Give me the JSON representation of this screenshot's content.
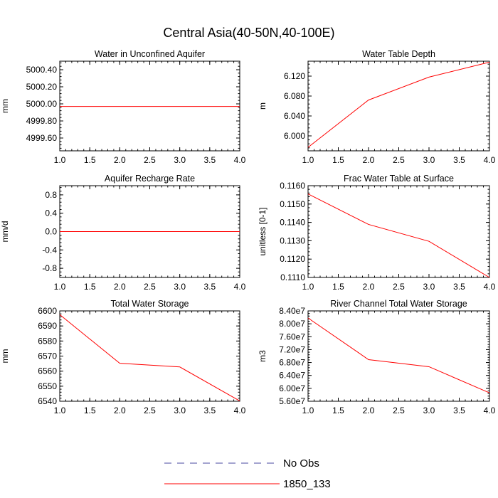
{
  "figure": {
    "title": "Central Asia(40-50N,40-100E)"
  },
  "legend": {
    "placement": "bottom-center",
    "entries": [
      {
        "label": "No Obs",
        "style": "dashed",
        "color": "#4a4aa0"
      },
      {
        "label": "1850_133",
        "style": "solid",
        "color": "#ff0000"
      }
    ]
  },
  "chart_data": [
    {
      "type": "line",
      "title": "Water in Unconfined Aquifer",
      "ylabel": "mm",
      "x": [
        1,
        2,
        3,
        4
      ],
      "xlim": [
        1,
        4
      ],
      "xticks": [
        "1.0",
        "1.5",
        "2.0",
        "2.5",
        "3.0",
        "3.5",
        "4.0"
      ],
      "ylim": [
        4999.45,
        5000.5
      ],
      "yticks": [
        "4999.60",
        "4999.80",
        "5000.00",
        "5000.20",
        "5000.40"
      ],
      "series": [
        {
          "name": "1850_133",
          "color": "#ff0000",
          "values": [
            4999.97,
            4999.97,
            4999.97,
            4999.97
          ]
        }
      ]
    },
    {
      "type": "line",
      "title": "Water Table Depth",
      "ylabel": "m",
      "x": [
        1,
        2,
        3,
        4
      ],
      "xlim": [
        1,
        4
      ],
      "xticks": [
        "1.0",
        "1.5",
        "2.0",
        "2.5",
        "3.0",
        "3.5",
        "4.0"
      ],
      "ylim": [
        5.97,
        6.15
      ],
      "yticks": [
        "6.000",
        "6.040",
        "6.080",
        "6.120"
      ],
      "series": [
        {
          "name": "1850_133",
          "color": "#ff0000",
          "values": [
            5.977,
            6.072,
            6.118,
            6.148
          ]
        }
      ]
    },
    {
      "type": "line",
      "title": "Aquifer Recharge Rate",
      "ylabel": "mm/d",
      "x": [
        1,
        2,
        3,
        4
      ],
      "xlim": [
        1,
        4
      ],
      "xticks": [
        "1.0",
        "1.5",
        "2.0",
        "2.5",
        "3.0",
        "3.5",
        "4.0"
      ],
      "ylim": [
        -1.0,
        1.0
      ],
      "yticks": [
        "-0.8",
        "-0.4",
        "0.0",
        "0.4",
        "0.8"
      ],
      "series": [
        {
          "name": "1850_133",
          "color": "#ff0000",
          "values": [
            0.0,
            0.0,
            0.0,
            0.0
          ]
        }
      ]
    },
    {
      "type": "line",
      "title": "Frac Water Table at Surface",
      "ylabel": "unitless [0-1]",
      "x": [
        1,
        2,
        3,
        4
      ],
      "xlim": [
        1,
        4
      ],
      "xticks": [
        "1.0",
        "1.5",
        "2.0",
        "2.5",
        "3.0",
        "3.5",
        "4.0"
      ],
      "ylim": [
        0.111,
        0.116
      ],
      "yticks": [
        "0.1110",
        "0.1120",
        "0.1130",
        "0.1140",
        "0.1150",
        "0.1160"
      ],
      "series": [
        {
          "name": "1850_133",
          "color": "#ff0000",
          "values": [
            0.11555,
            0.11389,
            0.11297,
            0.111
          ]
        }
      ]
    },
    {
      "type": "line",
      "title": "Total Water Storage",
      "ylabel": "mm",
      "x": [
        1,
        2,
        3,
        4
      ],
      "xlim": [
        1,
        4
      ],
      "xticks": [
        "1.0",
        "1.5",
        "2.0",
        "2.5",
        "3.0",
        "3.5",
        "4.0"
      ],
      "ylim": [
        6540,
        6600
      ],
      "yticks": [
        "6540",
        "6550",
        "6560",
        "6570",
        "6580",
        "6590",
        "6600"
      ],
      "series": [
        {
          "name": "1850_133",
          "color": "#ff0000",
          "values": [
            6597.5,
            6565.2,
            6562.8,
            6540.2
          ]
        }
      ]
    },
    {
      "type": "line",
      "title": "River Channel Total Water Storage",
      "ylabel": "m3",
      "x": [
        1,
        2,
        3,
        4
      ],
      "xlim": [
        1,
        4
      ],
      "xticks": [
        "1.0",
        "1.5",
        "2.0",
        "2.5",
        "3.0",
        "3.5",
        "4.0"
      ],
      "ylim": [
        56000000,
        84000000
      ],
      "yticks": [
        "5.60e7",
        "6.00e7",
        "6.40e7",
        "6.80e7",
        "7.20e7",
        "7.60e7",
        "8.00e7",
        "8.40e7"
      ],
      "series": [
        {
          "name": "1850_133",
          "color": "#ff0000",
          "values": [
            81800000,
            68900000,
            66700000,
            58600000
          ]
        }
      ]
    }
  ]
}
